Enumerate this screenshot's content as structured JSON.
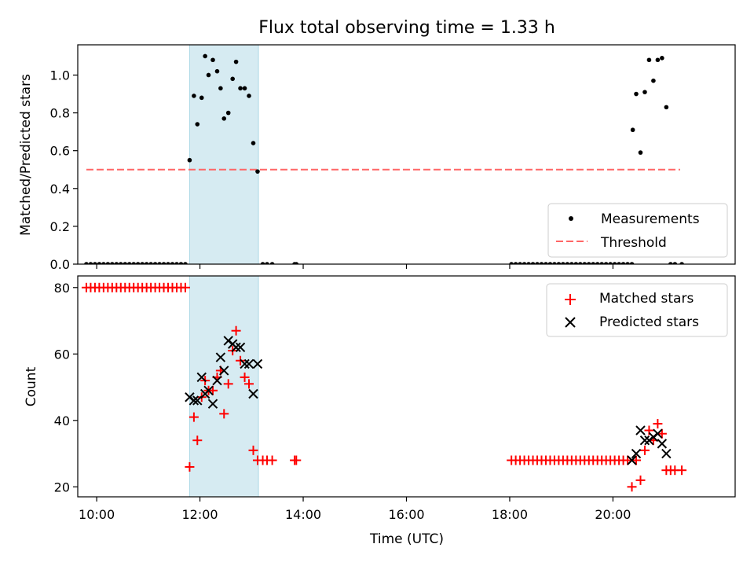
{
  "chart_data": [
    {
      "type": "scatter",
      "title": "Flux total observing time = 1.33 h",
      "ylabel": "Matched/Predicted stars",
      "xlabel": "",
      "xlim": [
        "09:38",
        "22:22"
      ],
      "ylim": [
        0,
        1.16
      ],
      "yticks": [
        0.0,
        0.2,
        0.4,
        0.6,
        0.8,
        1.0
      ],
      "ytick_labels": [
        "0.0",
        "0.2",
        "0.4",
        "0.6",
        "0.8",
        "1.0"
      ],
      "xticks": [
        "10:00",
        "12:00",
        "14:00",
        "16:00",
        "18:00",
        "20:00"
      ],
      "show_xtick_labels": false,
      "shaded_region": {
        "start": "11:48",
        "end": "13:08",
        "color": "#add8e6"
      },
      "threshold": {
        "label": "Threshold",
        "value": 0.5,
        "start": "09:48",
        "end": "21:18",
        "color": "#ff6666"
      },
      "legend": {
        "placement": "lower-right",
        "entries": [
          "Measurements",
          "Threshold"
        ]
      },
      "series": [
        {
          "name": "Measurements",
          "marker": "dot",
          "color": "#000000",
          "points": [
            [
              "09:48",
              0
            ],
            [
              "09:53",
              0
            ],
            [
              "09:58",
              0
            ],
            [
              "10:03",
              0
            ],
            [
              "10:08",
              0
            ],
            [
              "10:13",
              0
            ],
            [
              "10:18",
              0
            ],
            [
              "10:23",
              0
            ],
            [
              "10:28",
              0
            ],
            [
              "10:33",
              0
            ],
            [
              "10:38",
              0
            ],
            [
              "10:43",
              0
            ],
            [
              "10:48",
              0
            ],
            [
              "10:53",
              0
            ],
            [
              "10:58",
              0
            ],
            [
              "11:03",
              0
            ],
            [
              "11:08",
              0
            ],
            [
              "11:13",
              0
            ],
            [
              "11:18",
              0
            ],
            [
              "11:23",
              0
            ],
            [
              "11:28",
              0
            ],
            [
              "11:33",
              0
            ],
            [
              "11:38",
              0
            ],
            [
              "11:43",
              0
            ],
            [
              "11:48",
              0.55
            ],
            [
              "11:53",
              0.89
            ],
            [
              "11:57",
              0.74
            ],
            [
              "12:02",
              0.88
            ],
            [
              "12:06",
              1.1
            ],
            [
              "12:10",
              1.0
            ],
            [
              "12:15",
              1.08
            ],
            [
              "12:20",
              1.02
            ],
            [
              "12:24",
              0.93
            ],
            [
              "12:28",
              0.77
            ],
            [
              "12:33",
              0.8
            ],
            [
              "12:38",
              0.98
            ],
            [
              "12:42",
              1.07
            ],
            [
              "12:47",
              0.93
            ],
            [
              "12:52",
              0.93
            ],
            [
              "12:57",
              0.89
            ],
            [
              "13:02",
              0.64
            ],
            [
              "13:07",
              0.49
            ],
            [
              "13:13",
              0
            ],
            [
              "13:18",
              0
            ],
            [
              "13:24",
              0
            ],
            [
              "13:50",
              0
            ],
            [
              "13:52",
              0
            ],
            [
              "18:02",
              0
            ],
            [
              "18:07",
              0
            ],
            [
              "18:12",
              0
            ],
            [
              "18:17",
              0
            ],
            [
              "18:22",
              0
            ],
            [
              "18:27",
              0
            ],
            [
              "18:32",
              0
            ],
            [
              "18:37",
              0
            ],
            [
              "18:42",
              0
            ],
            [
              "18:47",
              0
            ],
            [
              "18:52",
              0
            ],
            [
              "18:57",
              0
            ],
            [
              "19:02",
              0
            ],
            [
              "19:07",
              0
            ],
            [
              "19:12",
              0
            ],
            [
              "19:17",
              0
            ],
            [
              "19:22",
              0
            ],
            [
              "19:27",
              0
            ],
            [
              "19:32",
              0
            ],
            [
              "19:37",
              0
            ],
            [
              "19:42",
              0
            ],
            [
              "19:47",
              0
            ],
            [
              "19:52",
              0
            ],
            [
              "19:57",
              0
            ],
            [
              "20:02",
              0
            ],
            [
              "20:07",
              0
            ],
            [
              "20:12",
              0
            ],
            [
              "20:17",
              0
            ],
            [
              "20:22",
              0
            ],
            [
              "20:23",
              0.71
            ],
            [
              "20:27",
              0.9
            ],
            [
              "20:32",
              0.59
            ],
            [
              "20:37",
              0.91
            ],
            [
              "20:42",
              1.08
            ],
            [
              "20:47",
              0.97
            ],
            [
              "20:52",
              1.08
            ],
            [
              "20:57",
              1.09
            ],
            [
              "21:02",
              0.83
            ],
            [
              "21:07",
              0
            ],
            [
              "21:12",
              0
            ],
            [
              "21:20",
              0
            ]
          ]
        }
      ]
    },
    {
      "type": "scatter",
      "title": "",
      "ylabel": "Count",
      "xlabel": "Time (UTC)",
      "xlim": [
        "09:38",
        "22:22"
      ],
      "ylim": [
        17,
        83.5
      ],
      "yticks": [
        20,
        40,
        60,
        80
      ],
      "ytick_labels": [
        "20",
        "40",
        "60",
        "80"
      ],
      "xticks": [
        "10:00",
        "12:00",
        "14:00",
        "16:00",
        "18:00",
        "20:00"
      ],
      "xtick_labels": [
        "10:00",
        "12:00",
        "14:00",
        "16:00",
        "18:00",
        "20:00"
      ],
      "show_xtick_labels": true,
      "shaded_region": {
        "start": "11:48",
        "end": "13:08",
        "color": "#add8e6"
      },
      "legend": {
        "placement": "upper-right",
        "entries": [
          "Matched stars",
          "Predicted stars"
        ]
      },
      "series": [
        {
          "name": "Matched stars",
          "marker": "plus",
          "color": "#ff0000",
          "points": [
            [
              "09:48",
              80
            ],
            [
              "09:53",
              80
            ],
            [
              "09:58",
              80
            ],
            [
              "10:03",
              80
            ],
            [
              "10:08",
              80
            ],
            [
              "10:13",
              80
            ],
            [
              "10:18",
              80
            ],
            [
              "10:23",
              80
            ],
            [
              "10:28",
              80
            ],
            [
              "10:33",
              80
            ],
            [
              "10:38",
              80
            ],
            [
              "10:43",
              80
            ],
            [
              "10:48",
              80
            ],
            [
              "10:53",
              80
            ],
            [
              "10:58",
              80
            ],
            [
              "11:03",
              80
            ],
            [
              "11:08",
              80
            ],
            [
              "11:13",
              80
            ],
            [
              "11:18",
              80
            ],
            [
              "11:23",
              80
            ],
            [
              "11:28",
              80
            ],
            [
              "11:33",
              80
            ],
            [
              "11:38",
              80
            ],
            [
              "11:43",
              80
            ],
            [
              "11:48",
              26
            ],
            [
              "11:53",
              41
            ],
            [
              "11:57",
              34
            ],
            [
              "12:02",
              47
            ],
            [
              "12:06",
              52
            ],
            [
              "12:10",
              49
            ],
            [
              "12:15",
              49
            ],
            [
              "12:20",
              53
            ],
            [
              "12:24",
              55
            ],
            [
              "12:28",
              42
            ],
            [
              "12:33",
              51
            ],
            [
              "12:38",
              61
            ],
            [
              "12:42",
              67
            ],
            [
              "12:47",
              58
            ],
            [
              "12:52",
              53
            ],
            [
              "12:57",
              51
            ],
            [
              "13:02",
              31
            ],
            [
              "13:07",
              28
            ],
            [
              "13:13",
              28
            ],
            [
              "13:18",
              28
            ],
            [
              "13:24",
              28
            ],
            [
              "13:50",
              28
            ],
            [
              "13:52",
              28
            ],
            [
              "18:02",
              28
            ],
            [
              "18:07",
              28
            ],
            [
              "18:12",
              28
            ],
            [
              "18:17",
              28
            ],
            [
              "18:22",
              28
            ],
            [
              "18:27",
              28
            ],
            [
              "18:32",
              28
            ],
            [
              "18:37",
              28
            ],
            [
              "18:42",
              28
            ],
            [
              "18:47",
              28
            ],
            [
              "18:52",
              28
            ],
            [
              "18:57",
              28
            ],
            [
              "19:02",
              28
            ],
            [
              "19:07",
              28
            ],
            [
              "19:12",
              28
            ],
            [
              "19:17",
              28
            ],
            [
              "19:22",
              28
            ],
            [
              "19:27",
              28
            ],
            [
              "19:32",
              28
            ],
            [
              "19:37",
              28
            ],
            [
              "19:42",
              28
            ],
            [
              "19:47",
              28
            ],
            [
              "19:52",
              28
            ],
            [
              "19:57",
              28
            ],
            [
              "20:02",
              28
            ],
            [
              "20:07",
              28
            ],
            [
              "20:12",
              28
            ],
            [
              "20:17",
              28
            ],
            [
              "20:22",
              20
            ],
            [
              "20:27",
              28
            ],
            [
              "20:32",
              22
            ],
            [
              "20:37",
              31
            ],
            [
              "20:42",
              37
            ],
            [
              "20:47",
              34
            ],
            [
              "20:52",
              39
            ],
            [
              "20:57",
              36
            ],
            [
              "21:02",
              25
            ],
            [
              "21:07",
              25
            ],
            [
              "21:12",
              25
            ],
            [
              "21:20",
              25
            ]
          ]
        },
        {
          "name": "Predicted stars",
          "marker": "x",
          "color": "#000000",
          "points": [
            [
              "11:48",
              47
            ],
            [
              "11:53",
              46
            ],
            [
              "11:57",
              46
            ],
            [
              "12:02",
              53
            ],
            [
              "12:06",
              48
            ],
            [
              "12:10",
              49
            ],
            [
              "12:15",
              45
            ],
            [
              "12:20",
              52
            ],
            [
              "12:24",
              59
            ],
            [
              "12:28",
              55
            ],
            [
              "12:33",
              64
            ],
            [
              "12:38",
              63
            ],
            [
              "12:42",
              62
            ],
            [
              "12:47",
              62
            ],
            [
              "12:52",
              57
            ],
            [
              "12:57",
              57
            ],
            [
              "13:02",
              48
            ],
            [
              "13:07",
              57
            ],
            [
              "20:22",
              28
            ],
            [
              "20:27",
              30
            ],
            [
              "20:32",
              37
            ],
            [
              "20:37",
              34
            ],
            [
              "20:42",
              34
            ],
            [
              "20:47",
              35
            ],
            [
              "20:52",
              36
            ],
            [
              "20:57",
              33
            ],
            [
              "21:02",
              30
            ]
          ]
        }
      ]
    }
  ]
}
